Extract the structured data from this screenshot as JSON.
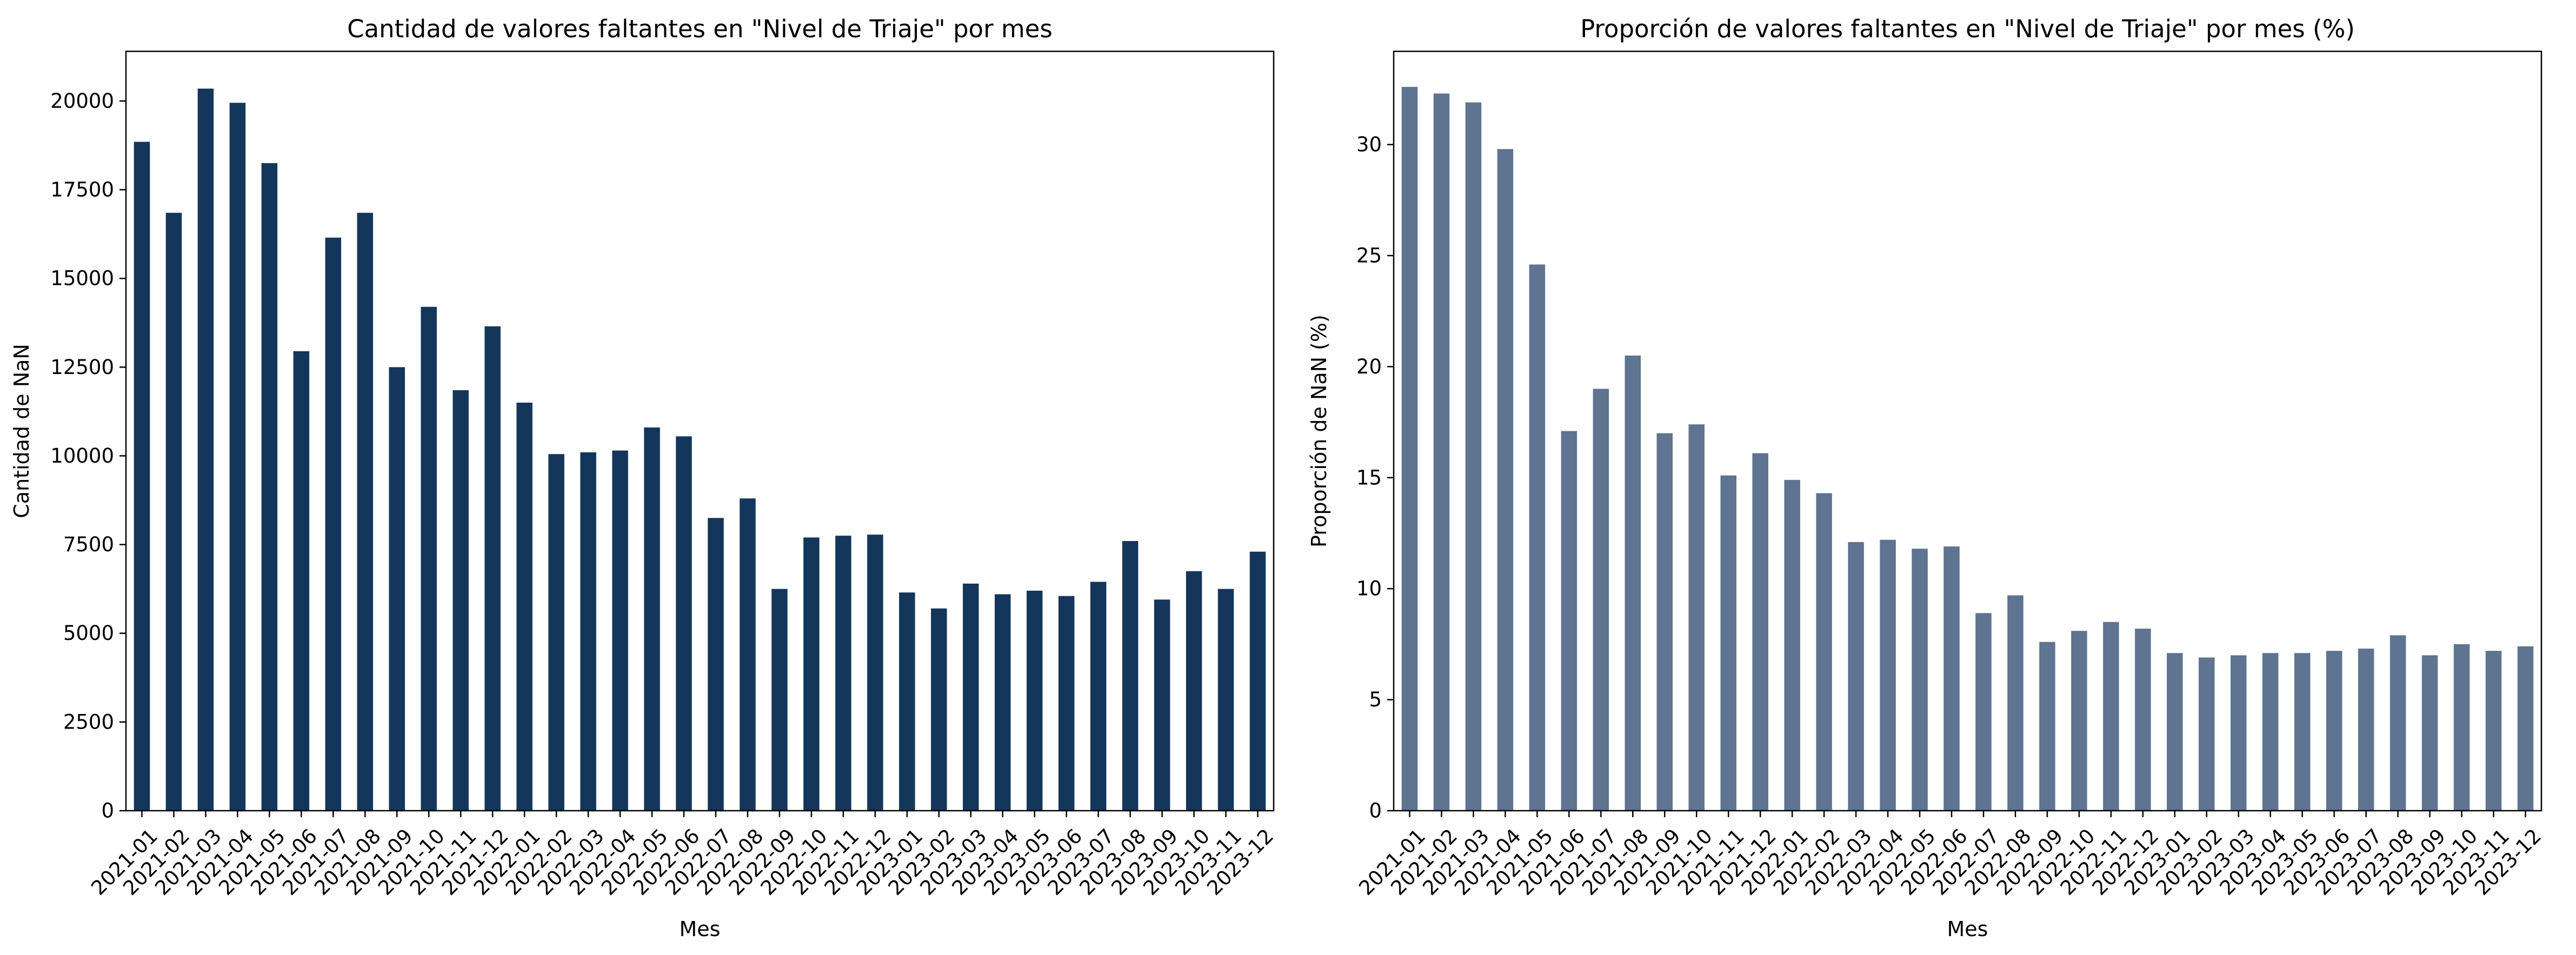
{
  "chart_data": [
    {
      "type": "bar",
      "title": "Cantidad de valores faltantes en \"Nivel de Triaje\" por mes",
      "xlabel": "Mes",
      "ylabel": "Cantidad de NaN",
      "ylim": [
        0,
        21400
      ],
      "yticks": [
        0,
        2500,
        5000,
        7500,
        10000,
        12500,
        15000,
        17500,
        20000
      ],
      "grid": false,
      "color": "#14365b",
      "categories": [
        "2021-01",
        "2021-02",
        "2021-03",
        "2021-04",
        "2021-05",
        "2021-06",
        "2021-07",
        "2021-08",
        "2021-09",
        "2021-10",
        "2021-11",
        "2021-12",
        "2022-01",
        "2022-02",
        "2022-03",
        "2022-04",
        "2022-05",
        "2022-06",
        "2022-07",
        "2022-08",
        "2022-09",
        "2022-10",
        "2022-11",
        "2022-12",
        "2023-01",
        "2023-02",
        "2023-03",
        "2023-04",
        "2023-05",
        "2023-06",
        "2023-07",
        "2023-08",
        "2023-09",
        "2023-10",
        "2023-11",
        "2023-12"
      ],
      "values": [
        18850,
        16850,
        20350,
        19950,
        18250,
        12950,
        16150,
        16850,
        12500,
        14200,
        11850,
        13650,
        11500,
        10050,
        10100,
        10150,
        10800,
        10550,
        8250,
        8800,
        6250,
        7700,
        7750,
        7780,
        6150,
        5700,
        6400,
        6100,
        6200,
        6050,
        6450,
        7600,
        5950,
        6750,
        6250,
        7300
      ]
    },
    {
      "type": "bar",
      "title": "Proporción de valores faltantes en \"Nivel de Triaje\" por mes (%)",
      "xlabel": "Mes",
      "ylabel": "Proporción de NaN (%)",
      "ylim": [
        0,
        34.2
      ],
      "yticks": [
        0,
        5,
        10,
        15,
        20,
        25,
        30
      ],
      "grid": false,
      "color": "#5e7490",
      "categories": [
        "2021-01",
        "2021-02",
        "2021-03",
        "2021-04",
        "2021-05",
        "2021-06",
        "2021-07",
        "2021-08",
        "2021-09",
        "2021-10",
        "2021-11",
        "2021-12",
        "2022-01",
        "2022-02",
        "2022-03",
        "2022-04",
        "2022-05",
        "2022-06",
        "2022-07",
        "2022-08",
        "2022-09",
        "2022-10",
        "2022-11",
        "2022-12",
        "2023-01",
        "2023-02",
        "2023-03",
        "2023-04",
        "2023-05",
        "2023-06",
        "2023-07",
        "2023-08",
        "2023-09",
        "2023-10",
        "2023-11",
        "2023-12"
      ],
      "values": [
        32.6,
        32.3,
        31.9,
        29.8,
        24.6,
        17.1,
        19.0,
        20.5,
        17.0,
        17.4,
        15.1,
        16.1,
        14.9,
        14.3,
        12.1,
        12.2,
        11.8,
        11.9,
        8.9,
        9.7,
        7.6,
        8.1,
        8.5,
        8.2,
        7.1,
        6.9,
        7.0,
        7.1,
        7.1,
        7.2,
        7.3,
        7.9,
        7.0,
        7.5,
        7.2,
        7.4
      ]
    }
  ]
}
